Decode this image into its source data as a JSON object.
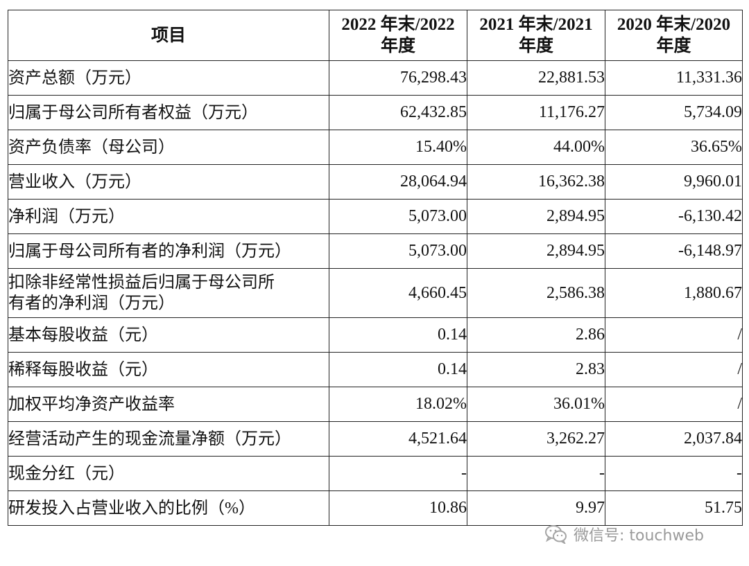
{
  "table": {
    "headers": [
      "项目",
      "2022 年末/2022\n年度",
      "2021 年末/2021\n年度",
      "2020 年末/2020\n年度"
    ],
    "header_lines": [
      [
        "项目"
      ],
      [
        "2022 年末/2022",
        "年度"
      ],
      [
        "2021 年末/2021",
        "年度"
      ],
      [
        "2020 年末/2020",
        "年度"
      ]
    ],
    "rows": [
      {
        "label_lines": [
          "资产总额（万元）"
        ],
        "values": [
          "76,298.43",
          "22,881.53",
          "11,331.36"
        ]
      },
      {
        "label_lines": [
          "归属于母公司所有者权益（万元）"
        ],
        "values": [
          "62,432.85",
          "11,176.27",
          "5,734.09"
        ]
      },
      {
        "label_lines": [
          "资产负债率（母公司）"
        ],
        "values": [
          "15.40%",
          "44.00%",
          "36.65%"
        ]
      },
      {
        "label_lines": [
          "营业收入（万元）"
        ],
        "values": [
          "28,064.94",
          "16,362.38",
          "9,960.01"
        ]
      },
      {
        "label_lines": [
          "净利润（万元）"
        ],
        "values": [
          "5,073.00",
          "2,894.95",
          "-6,130.42"
        ]
      },
      {
        "label_lines": [
          "归属于母公司所有者的净利润（万元）"
        ],
        "values": [
          "5,073.00",
          "2,894.95",
          "-6,148.97"
        ]
      },
      {
        "label_lines": [
          "扣除非经常性损益后归属于母公司所",
          "有者的净利润（万元）"
        ],
        "values": [
          "4,660.45",
          "2,586.38",
          "1,880.67"
        ]
      },
      {
        "label_lines": [
          "基本每股收益（元）"
        ],
        "values": [
          "0.14",
          "2.86",
          "/"
        ]
      },
      {
        "label_lines": [
          "稀释每股收益（元）"
        ],
        "values": [
          "0.14",
          "2.83",
          "/"
        ]
      },
      {
        "label_lines": [
          "加权平均净资产收益率"
        ],
        "values": [
          "18.02%",
          "36.01%",
          "/"
        ]
      },
      {
        "label_lines": [
          "经营活动产生的现金流量净额（万元）"
        ],
        "values": [
          "4,521.64",
          "3,262.27",
          "2,037.84"
        ]
      },
      {
        "label_lines": [
          "现金分红（元）"
        ],
        "values": [
          "-",
          "-",
          "-"
        ]
      },
      {
        "label_lines": [
          "研发投入占营业收入的比例（%）"
        ],
        "values": [
          "10.86",
          "9.97",
          "51.75"
        ]
      }
    ]
  },
  "watermark": {
    "text": "微信号: touchweb",
    "icon": "wechat-icon",
    "color": "#9a9a9a"
  }
}
